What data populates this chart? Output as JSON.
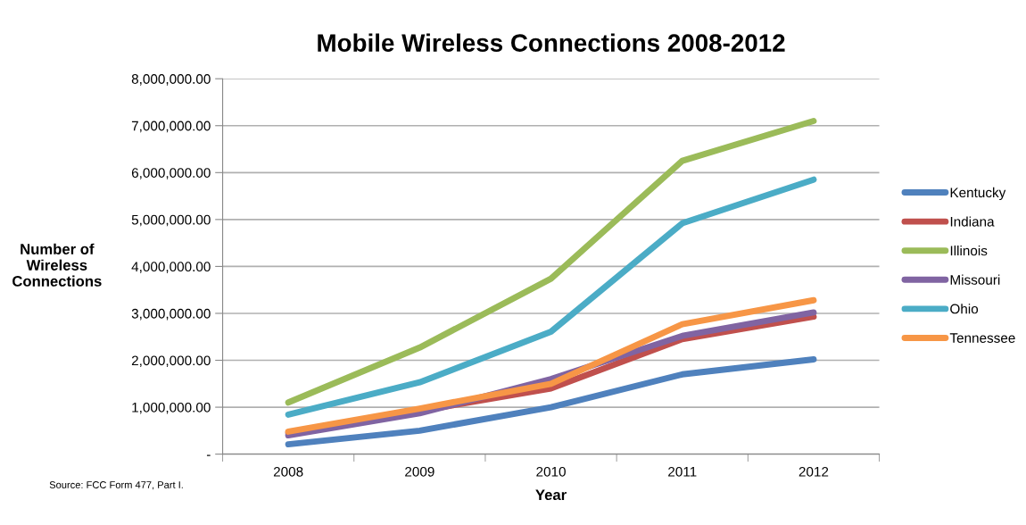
{
  "chart_data": {
    "type": "line",
    "title": "Mobile Wireless Connections 2008-2012",
    "xlabel": "Year",
    "ylabel": "Number of\nWireless\nConnections",
    "categories": [
      "2008",
      "2009",
      "2010",
      "2011",
      "2012"
    ],
    "series": [
      {
        "name": "Kentucky",
        "color": "#4f81bd",
        "values": [
          210000,
          500000,
          1000000,
          1700000,
          2020000
        ]
      },
      {
        "name": "Indiana",
        "color": "#c0504d",
        "values": [
          450000,
          920000,
          1400000,
          2450000,
          2930000
        ]
      },
      {
        "name": "Illinois",
        "color": "#9bbb59",
        "values": [
          1100000,
          2270000,
          3740000,
          6250000,
          7100000
        ]
      },
      {
        "name": "Missouri",
        "color": "#8064a2",
        "values": [
          400000,
          870000,
          1600000,
          2520000,
          3020000
        ]
      },
      {
        "name": "Ohio",
        "color": "#4bacc6",
        "values": [
          840000,
          1530000,
          2610000,
          4920000,
          5850000
        ]
      },
      {
        "name": "Tennessee",
        "color": "#f79646",
        "values": [
          480000,
          970000,
          1500000,
          2770000,
          3280000
        ]
      }
    ],
    "ylim": [
      0,
      8000000
    ],
    "yticks": [
      {
        "value": 0,
        "label": "-"
      },
      {
        "value": 1000000,
        "label": "1,000,000.00"
      },
      {
        "value": 2000000,
        "label": "2,000,000.00"
      },
      {
        "value": 3000000,
        "label": "3,000,000.00"
      },
      {
        "value": 4000000,
        "label": "4,000,000.00"
      },
      {
        "value": 5000000,
        "label": "5,000,000.00"
      },
      {
        "value": 6000000,
        "label": "6,000,000.00"
      },
      {
        "value": 7000000,
        "label": "7,000,000.00"
      },
      {
        "value": 8000000,
        "label": "8,000,000.00"
      }
    ],
    "grid": "y",
    "legend": "right",
    "marker": "none",
    "line_style": "solid",
    "annotations": [
      "Source: FCC Form 477, Part I."
    ]
  }
}
